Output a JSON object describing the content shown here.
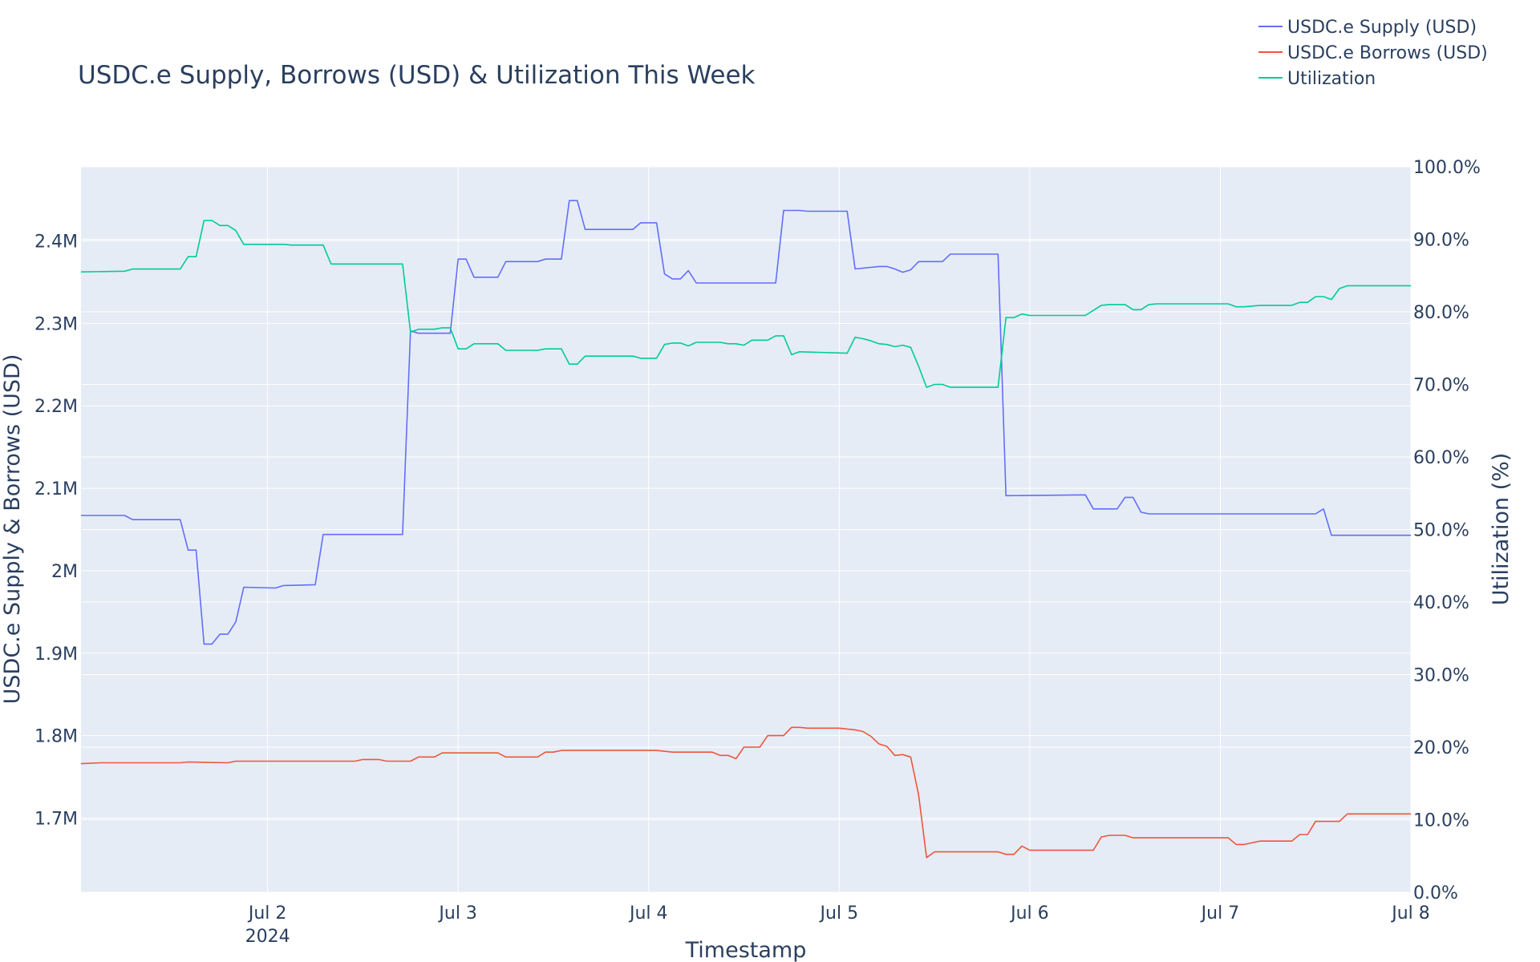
{
  "chart_data": {
    "type": "line",
    "title": "USDC.e Supply, Borrows (USD) & Utilization This Week",
    "xlabel": "Timestamp",
    "ylabel": "USDC.e Supply & Borrows (USD)",
    "y2label": "Utilization (%)",
    "legend_position": "top-right",
    "grid": true,
    "xlim": [
      "2024-07-01T00:30",
      "2024-07-08T00:00"
    ],
    "ylim": [
      1610000,
      2490000
    ],
    "y2lim": [
      0,
      100
    ],
    "x_ticks": [
      {
        "t": "2024-07-02T00:00",
        "label": "Jul 2",
        "sublabel": "2024"
      },
      {
        "t": "2024-07-03T00:00",
        "label": "Jul 3",
        "sublabel": ""
      },
      {
        "t": "2024-07-04T00:00",
        "label": "Jul 4",
        "sublabel": ""
      },
      {
        "t": "2024-07-05T00:00",
        "label": "Jul 5",
        "sublabel": ""
      },
      {
        "t": "2024-07-06T00:00",
        "label": "Jul 6",
        "sublabel": ""
      },
      {
        "t": "2024-07-07T00:00",
        "label": "Jul 7",
        "sublabel": ""
      },
      {
        "t": "2024-07-08T00:00",
        "label": "Jul 8",
        "sublabel": ""
      }
    ],
    "y_ticks": [
      {
        "v": 1700000,
        "label": "1.7M"
      },
      {
        "v": 1800000,
        "label": "1.8M"
      },
      {
        "v": 1900000,
        "label": "1.9M"
      },
      {
        "v": 2000000,
        "label": "2M"
      },
      {
        "v": 2100000,
        "label": "2.1M"
      },
      {
        "v": 2200000,
        "label": "2.2M"
      },
      {
        "v": 2300000,
        "label": "2.3M"
      },
      {
        "v": 2400000,
        "label": "2.4M"
      }
    ],
    "y2_ticks": [
      {
        "v": 0,
        "label": "0.0%"
      },
      {
        "v": 10,
        "label": "10.0%"
      },
      {
        "v": 20,
        "label": "20.0%"
      },
      {
        "v": 30,
        "label": "30.0%"
      },
      {
        "v": 40,
        "label": "40.0%"
      },
      {
        "v": 50,
        "label": "50.0%"
      },
      {
        "v": 60,
        "label": "60.0%"
      },
      {
        "v": 70,
        "label": "70.0%"
      },
      {
        "v": 80,
        "label": "80.0%"
      },
      {
        "v": 90,
        "label": "90.0%"
      },
      {
        "v": 100,
        "label": "100.0%"
      }
    ],
    "series": [
      {
        "name": "USDC.e Supply (USD)",
        "color": "#636efa",
        "axis": "y",
        "points": [
          [
            "2024-07-01T00:30",
            2067000
          ],
          [
            "2024-07-01T06:00",
            2067000
          ],
          [
            "2024-07-01T07:00",
            2062000
          ],
          [
            "2024-07-01T13:00",
            2062000
          ],
          [
            "2024-07-01T14:00",
            2025000
          ],
          [
            "2024-07-01T15:00",
            2025000
          ],
          [
            "2024-07-01T16:00",
            1911000
          ],
          [
            "2024-07-01T17:00",
            1911000
          ],
          [
            "2024-07-01T18:00",
            1923000
          ],
          [
            "2024-07-01T19:00",
            1923000
          ],
          [
            "2024-07-01T20:00",
            1938000
          ],
          [
            "2024-07-01T21:00",
            1980000
          ],
          [
            "2024-07-02T01:00",
            1979000
          ],
          [
            "2024-07-02T02:00",
            1982000
          ],
          [
            "2024-07-02T06:00",
            1983000
          ],
          [
            "2024-07-02T07:00",
            2044000
          ],
          [
            "2024-07-02T17:00",
            2044000
          ],
          [
            "2024-07-02T18:00",
            2291000
          ],
          [
            "2024-07-02T19:00",
            2288000
          ],
          [
            "2024-07-02T23:00",
            2288000
          ],
          [
            "2024-07-03T00:00",
            2378000
          ],
          [
            "2024-07-03T01:00",
            2378000
          ],
          [
            "2024-07-03T02:00",
            2356000
          ],
          [
            "2024-07-03T05:00",
            2356000
          ],
          [
            "2024-07-03T06:00",
            2375000
          ],
          [
            "2024-07-03T10:00",
            2375000
          ],
          [
            "2024-07-03T11:00",
            2378000
          ],
          [
            "2024-07-03T13:00",
            2378000
          ],
          [
            "2024-07-03T14:00",
            2449000
          ],
          [
            "2024-07-03T15:00",
            2449000
          ],
          [
            "2024-07-03T16:00",
            2414000
          ],
          [
            "2024-07-03T22:00",
            2414000
          ],
          [
            "2024-07-03T23:00",
            2422000
          ],
          [
            "2024-07-04T01:00",
            2422000
          ],
          [
            "2024-07-04T02:00",
            2360000
          ],
          [
            "2024-07-04T03:00",
            2354000
          ],
          [
            "2024-07-04T04:00",
            2354000
          ],
          [
            "2024-07-04T05:00",
            2364000
          ],
          [
            "2024-07-04T06:00",
            2349000
          ],
          [
            "2024-07-04T16:00",
            2349000
          ],
          [
            "2024-07-04T17:00",
            2437000
          ],
          [
            "2024-07-04T19:00",
            2437000
          ],
          [
            "2024-07-04T20:00",
            2436000
          ],
          [
            "2024-07-05T01:00",
            2436000
          ],
          [
            "2024-07-05T02:00",
            2366000
          ],
          [
            "2024-07-05T05:00",
            2369000
          ],
          [
            "2024-07-05T06:00",
            2369000
          ],
          [
            "2024-07-05T07:00",
            2366000
          ],
          [
            "2024-07-05T08:00",
            2362000
          ],
          [
            "2024-07-05T09:00",
            2365000
          ],
          [
            "2024-07-05T10:00",
            2375000
          ],
          [
            "2024-07-05T13:00",
            2375000
          ],
          [
            "2024-07-05T14:00",
            2384000
          ],
          [
            "2024-07-05T20:00",
            2384000
          ],
          [
            "2024-07-05T21:00",
            2091000
          ],
          [
            "2024-07-06T07:00",
            2092000
          ],
          [
            "2024-07-06T08:00",
            2075000
          ],
          [
            "2024-07-06T11:00",
            2075000
          ],
          [
            "2024-07-06T12:00",
            2089000
          ],
          [
            "2024-07-06T13:00",
            2089000
          ],
          [
            "2024-07-06T14:00",
            2071000
          ],
          [
            "2024-07-06T15:00",
            2069000
          ],
          [
            "2024-07-07T12:00",
            2069000
          ],
          [
            "2024-07-07T13:00",
            2075000
          ],
          [
            "2024-07-07T14:00",
            2043000
          ],
          [
            "2024-07-08T00:00",
            2043000
          ]
        ]
      },
      {
        "name": "USDC.e Borrows (USD)",
        "color": "#ef553b",
        "axis": "y",
        "points": [
          [
            "2024-07-01T00:30",
            1766000
          ],
          [
            "2024-07-01T03:00",
            1767000
          ],
          [
            "2024-07-01T13:00",
            1767000
          ],
          [
            "2024-07-01T14:00",
            1768000
          ],
          [
            "2024-07-01T19:00",
            1767000
          ],
          [
            "2024-07-01T20:00",
            1769000
          ],
          [
            "2024-07-02T11:00",
            1769000
          ],
          [
            "2024-07-02T12:00",
            1771000
          ],
          [
            "2024-07-02T14:00",
            1771000
          ],
          [
            "2024-07-02T15:00",
            1769000
          ],
          [
            "2024-07-02T18:00",
            1769000
          ],
          [
            "2024-07-02T19:00",
            1774000
          ],
          [
            "2024-07-02T21:00",
            1774000
          ],
          [
            "2024-07-02T22:00",
            1779000
          ],
          [
            "2024-07-03T05:00",
            1779000
          ],
          [
            "2024-07-03T06:00",
            1774000
          ],
          [
            "2024-07-03T10:00",
            1774000
          ],
          [
            "2024-07-03T11:00",
            1780000
          ],
          [
            "2024-07-03T12:00",
            1780000
          ],
          [
            "2024-07-03T13:00",
            1782000
          ],
          [
            "2024-07-03T17:00",
            1782000
          ],
          [
            "2024-07-04T00:00",
            1782000
          ],
          [
            "2024-07-04T01:00",
            1782000
          ],
          [
            "2024-07-04T03:00",
            1780000
          ],
          [
            "2024-07-04T08:00",
            1780000
          ],
          [
            "2024-07-04T09:00",
            1776000
          ],
          [
            "2024-07-04T10:00",
            1776000
          ],
          [
            "2024-07-04T11:00",
            1772000
          ],
          [
            "2024-07-04T12:00",
            1786000
          ],
          [
            "2024-07-04T14:00",
            1786000
          ],
          [
            "2024-07-04T15:00",
            1800000
          ],
          [
            "2024-07-04T17:00",
            1800000
          ],
          [
            "2024-07-04T18:00",
            1810000
          ],
          [
            "2024-07-04T19:00",
            1810000
          ],
          [
            "2024-07-04T20:00",
            1809000
          ],
          [
            "2024-07-05T00:00",
            1809000
          ],
          [
            "2024-07-05T01:00",
            1808000
          ],
          [
            "2024-07-05T02:00",
            1807000
          ],
          [
            "2024-07-05T03:00",
            1805000
          ],
          [
            "2024-07-05T04:00",
            1799000
          ],
          [
            "2024-07-05T05:00",
            1790000
          ],
          [
            "2024-07-05T06:00",
            1787000
          ],
          [
            "2024-07-05T07:00",
            1776000
          ],
          [
            "2024-07-05T08:00",
            1777000
          ],
          [
            "2024-07-05T09:00",
            1774000
          ],
          [
            "2024-07-05T10:00",
            1728000
          ],
          [
            "2024-07-05T11:00",
            1652000
          ],
          [
            "2024-07-05T12:00",
            1659000
          ],
          [
            "2024-07-05T20:00",
            1659000
          ],
          [
            "2024-07-05T21:00",
            1656000
          ],
          [
            "2024-07-05T22:00",
            1656000
          ],
          [
            "2024-07-05T23:00",
            1666000
          ],
          [
            "2024-07-06T00:00",
            1661000
          ],
          [
            "2024-07-06T08:00",
            1661000
          ],
          [
            "2024-07-06T09:00",
            1677000
          ],
          [
            "2024-07-06T10:00",
            1679000
          ],
          [
            "2024-07-06T12:00",
            1679000
          ],
          [
            "2024-07-06T13:00",
            1676000
          ],
          [
            "2024-07-07T01:00",
            1676000
          ],
          [
            "2024-07-07T02:00",
            1668000
          ],
          [
            "2024-07-07T03:00",
            1668000
          ],
          [
            "2024-07-07T05:00",
            1672000
          ],
          [
            "2024-07-07T09:00",
            1672000
          ],
          [
            "2024-07-07T10:00",
            1680000
          ],
          [
            "2024-07-07T11:00",
            1680000
          ],
          [
            "2024-07-07T12:00",
            1696000
          ],
          [
            "2024-07-07T15:00",
            1696000
          ],
          [
            "2024-07-07T16:00",
            1705000
          ],
          [
            "2024-07-08T00:00",
            1705000
          ]
        ]
      },
      {
        "name": "Utilization",
        "color": "#00cc96",
        "axis": "y2",
        "points": [
          [
            "2024-07-01T00:30",
            85.5
          ],
          [
            "2024-07-01T06:00",
            85.6
          ],
          [
            "2024-07-01T07:00",
            85.9
          ],
          [
            "2024-07-01T13:00",
            85.9
          ],
          [
            "2024-07-01T14:00",
            87.6
          ],
          [
            "2024-07-01T15:00",
            87.6
          ],
          [
            "2024-07-01T16:00",
            92.6
          ],
          [
            "2024-07-01T17:00",
            92.6
          ],
          [
            "2024-07-01T18:00",
            91.9
          ],
          [
            "2024-07-01T19:00",
            91.9
          ],
          [
            "2024-07-01T20:00",
            91.2
          ],
          [
            "2024-07-01T21:00",
            89.3
          ],
          [
            "2024-07-02T02:00",
            89.3
          ],
          [
            "2024-07-02T03:00",
            89.2
          ],
          [
            "2024-07-02T07:00",
            89.2
          ],
          [
            "2024-07-02T08:00",
            86.6
          ],
          [
            "2024-07-02T17:00",
            86.6
          ],
          [
            "2024-07-02T18:00",
            77.2
          ],
          [
            "2024-07-02T19:00",
            77.6
          ],
          [
            "2024-07-02T21:00",
            77.6
          ],
          [
            "2024-07-02T22:00",
            77.8
          ],
          [
            "2024-07-02T23:00",
            77.8
          ],
          [
            "2024-07-03T00:00",
            74.9
          ],
          [
            "2024-07-03T01:00",
            74.9
          ],
          [
            "2024-07-03T02:00",
            75.6
          ],
          [
            "2024-07-03T05:00",
            75.6
          ],
          [
            "2024-07-03T06:00",
            74.7
          ],
          [
            "2024-07-03T10:00",
            74.7
          ],
          [
            "2024-07-03T11:00",
            74.9
          ],
          [
            "2024-07-03T13:00",
            74.9
          ],
          [
            "2024-07-03T14:00",
            72.8
          ],
          [
            "2024-07-03T15:00",
            72.8
          ],
          [
            "2024-07-03T16:00",
            73.9
          ],
          [
            "2024-07-03T22:00",
            73.9
          ],
          [
            "2024-07-03T23:00",
            73.6
          ],
          [
            "2024-07-04T01:00",
            73.6
          ],
          [
            "2024-07-04T02:00",
            75.5
          ],
          [
            "2024-07-04T03:00",
            75.7
          ],
          [
            "2024-07-04T04:00",
            75.7
          ],
          [
            "2024-07-04T05:00",
            75.3
          ],
          [
            "2024-07-04T06:00",
            75.8
          ],
          [
            "2024-07-04T09:00",
            75.8
          ],
          [
            "2024-07-04T10:00",
            75.6
          ],
          [
            "2024-07-04T11:00",
            75.6
          ],
          [
            "2024-07-04T12:00",
            75.4
          ],
          [
            "2024-07-04T13:00",
            76.1
          ],
          [
            "2024-07-04T15:00",
            76.1
          ],
          [
            "2024-07-04T16:00",
            76.7
          ],
          [
            "2024-07-04T17:00",
            76.7
          ],
          [
            "2024-07-04T18:00",
            74.1
          ],
          [
            "2024-07-04T19:00",
            74.5
          ],
          [
            "2024-07-05T01:00",
            74.3
          ],
          [
            "2024-07-05T02:00",
            76.5
          ],
          [
            "2024-07-05T03:00",
            76.3
          ],
          [
            "2024-07-05T04:00",
            76.0
          ],
          [
            "2024-07-05T05:00",
            75.6
          ],
          [
            "2024-07-05T06:00",
            75.5
          ],
          [
            "2024-07-05T07:00",
            75.2
          ],
          [
            "2024-07-05T08:00",
            75.4
          ],
          [
            "2024-07-05T09:00",
            75.1
          ],
          [
            "2024-07-05T10:00",
            72.5
          ],
          [
            "2024-07-05T11:00",
            69.6
          ],
          [
            "2024-07-05T12:00",
            70.0
          ],
          [
            "2024-07-05T13:00",
            70.0
          ],
          [
            "2024-07-05T14:00",
            69.6
          ],
          [
            "2024-07-05T20:00",
            69.6
          ],
          [
            "2024-07-05T21:00",
            79.2
          ],
          [
            "2024-07-05T22:00",
            79.2
          ],
          [
            "2024-07-05T23:00",
            79.7
          ],
          [
            "2024-07-06T00:00",
            79.5
          ],
          [
            "2024-07-06T07:00",
            79.5
          ],
          [
            "2024-07-06T08:00",
            80.2
          ],
          [
            "2024-07-06T09:00",
            80.9
          ],
          [
            "2024-07-06T10:00",
            81.0
          ],
          [
            "2024-07-06T12:00",
            81.0
          ],
          [
            "2024-07-06T13:00",
            80.3
          ],
          [
            "2024-07-06T14:00",
            80.3
          ],
          [
            "2024-07-06T15:00",
            81.0
          ],
          [
            "2024-07-06T16:00",
            81.1
          ],
          [
            "2024-07-07T01:00",
            81.1
          ],
          [
            "2024-07-07T02:00",
            80.7
          ],
          [
            "2024-07-07T03:00",
            80.7
          ],
          [
            "2024-07-07T05:00",
            80.9
          ],
          [
            "2024-07-07T09:00",
            80.9
          ],
          [
            "2024-07-07T10:00",
            81.3
          ],
          [
            "2024-07-07T11:00",
            81.3
          ],
          [
            "2024-07-07T12:00",
            82.1
          ],
          [
            "2024-07-07T13:00",
            82.1
          ],
          [
            "2024-07-07T14:00",
            81.7
          ],
          [
            "2024-07-07T15:00",
            83.2
          ],
          [
            "2024-07-07T16:00",
            83.6
          ],
          [
            "2024-07-08T00:00",
            83.6
          ]
        ]
      }
    ]
  }
}
